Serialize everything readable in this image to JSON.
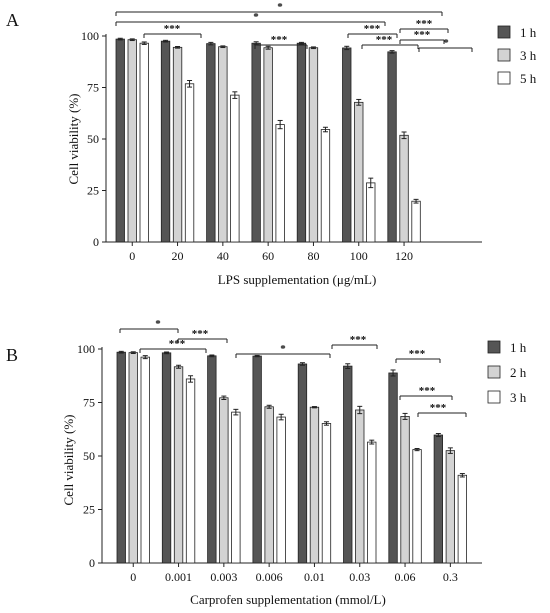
{
  "chart_data": [
    {
      "panel_label": "A",
      "type": "bar",
      "xlabel": "LPS supplementation (μg/mL)",
      "ylabel": "Cell viability (%)",
      "ylim": [
        0,
        100
      ],
      "yticks": [
        0,
        25,
        50,
        75,
        100
      ],
      "categories": [
        "0",
        "20",
        "40",
        "60",
        "80",
        "100",
        "120"
      ],
      "series": [
        {
          "name": "1 h",
          "color": "#555555",
          "values": [
            98.5,
            97.5,
            96.3,
            96.5,
            96.5,
            94.2,
            92.3
          ],
          "errors": [
            0.4,
            0.4,
            0.6,
            0.7,
            0.4,
            0.8,
            0.6
          ]
        },
        {
          "name": "3 h",
          "color": "#d3d3d3",
          "values": [
            98.2,
            94.5,
            94.8,
            94.3,
            94.3,
            67.8,
            51.8
          ],
          "errors": [
            0.4,
            0.4,
            0.4,
            0.7,
            0.4,
            1.4,
            1.6
          ]
        },
        {
          "name": "5 h",
          "color": "#ffffff",
          "values": [
            96.5,
            76.8,
            71.3,
            57.0,
            54.6,
            28.7,
            19.8
          ],
          "errors": [
            0.6,
            1.6,
            1.6,
            2.0,
            1.1,
            2.3,
            0.9
          ]
        }
      ],
      "legend": {
        "position": "top-right",
        "entries": [
          "1 h",
          "3 h",
          "5 h"
        ]
      },
      "annotations": [
        "*",
        "*",
        "***",
        "***",
        "***",
        "***",
        "***",
        "***",
        "*"
      ]
    },
    {
      "panel_label": "B",
      "type": "bar",
      "xlabel": "Carprofen supplementation (mmol/L)",
      "ylabel": "Cell viability (%)",
      "ylim": [
        0,
        100
      ],
      "yticks": [
        0,
        25,
        50,
        75,
        100
      ],
      "categories": [
        "0",
        "0.001",
        "0.003",
        "0.006",
        "0.01",
        "0.03",
        "0.06",
        "0.3"
      ],
      "series": [
        {
          "name": "1 h",
          "color": "#555555",
          "values": [
            98.5,
            98.2,
            96.8,
            96.7,
            93.0,
            92.0,
            88.8,
            59.8
          ],
          "errors": [
            0.4,
            0.4,
            0.4,
            0.3,
            0.6,
            1.1,
            1.4,
            0.7
          ]
        },
        {
          "name": "2 h",
          "color": "#d3d3d3",
          "values": [
            98.3,
            91.7,
            77.2,
            73.0,
            72.8,
            71.5,
            68.5,
            52.5
          ],
          "errors": [
            0.4,
            0.7,
            0.8,
            0.7,
            0.3,
            1.7,
            1.4,
            1.3
          ]
        },
        {
          "name": "3 h",
          "color": "#ffffff",
          "values": [
            96.2,
            86.0,
            70.5,
            68.2,
            65.2,
            56.5,
            53.0,
            41.0
          ],
          "errors": [
            0.7,
            1.5,
            1.3,
            1.3,
            0.8,
            0.9,
            0.5,
            0.8
          ]
        }
      ],
      "legend": {
        "position": "top-right",
        "entries": [
          "1 h",
          "2 h",
          "3 h"
        ]
      },
      "annotations": [
        "*",
        "***",
        "***",
        "*",
        "***",
        "***",
        "***",
        "***"
      ]
    }
  ]
}
